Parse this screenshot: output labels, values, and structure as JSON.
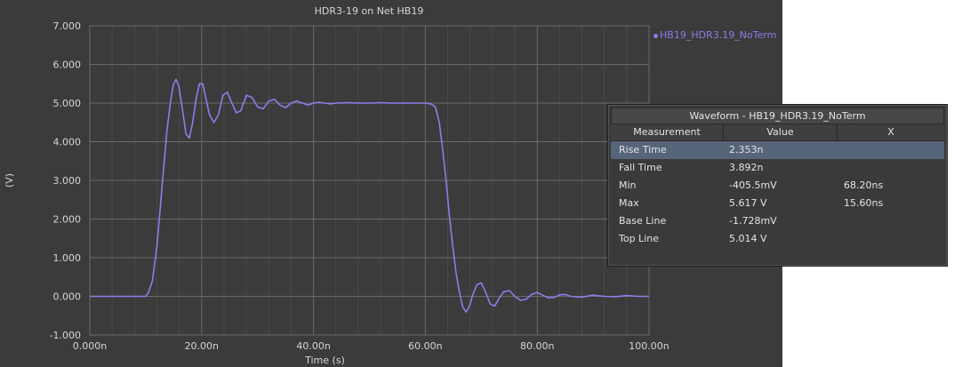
{
  "window": {
    "title": "HDR3-19 on Net HB19"
  },
  "chart_data": {
    "type": "line",
    "title": "HDR3-19 on Net HB19",
    "xlabel": "Time (s)",
    "ylabel": "(V)",
    "xlim": [
      0,
      100
    ],
    "ylim": [
      -1,
      7
    ],
    "x_tick_labels": [
      "0.000n",
      "20.00n",
      "40.00n",
      "60.00n",
      "80.00n",
      "100.00n"
    ],
    "x_ticks": [
      0,
      20,
      40,
      60,
      80,
      100
    ],
    "y_tick_labels": [
      "-1.000",
      "0.000",
      "1.000",
      "2.000",
      "3.000",
      "4.000",
      "5.000",
      "6.000",
      "7.000"
    ],
    "y_ticks": [
      -1,
      0,
      1,
      2,
      3,
      4,
      5,
      6,
      7
    ],
    "grid": true,
    "legend_position": "top-right",
    "series": [
      {
        "name": "HB19_HDR3.19_NoTerm",
        "color": "#8a7fe8",
        "x": [
          0,
          10,
          10.5,
          11.2,
          12,
          12.6,
          13.2,
          13.8,
          14.4,
          14.9,
          15.4,
          15.9,
          16.5,
          17.2,
          17.8,
          18.4,
          19.0,
          19.6,
          20.2,
          20.8,
          21.4,
          22.2,
          23.0,
          23.8,
          24.6,
          25.4,
          26.2,
          27.0,
          28.0,
          29.0,
          30.0,
          31.0,
          32.0,
          33.0,
          34.0,
          35.0,
          36.0,
          37.0,
          38.0,
          39.0,
          40.0,
          41.0,
          42.0,
          43.0,
          44.0,
          46.0,
          48.0,
          50.0,
          52.0,
          54.0,
          56.0,
          58.0,
          60.0,
          61.0,
          61.8,
          62.5,
          63.1,
          63.7,
          64.3,
          64.9,
          65.5,
          66.1,
          66.7,
          67.3,
          67.9,
          68.5,
          69.2,
          70.0,
          70.8,
          71.6,
          72.4,
          73.2,
          74.0,
          75.0,
          76.0,
          77.0,
          78.0,
          79.0,
          80.0,
          81.0,
          82.0,
          83.0,
          84.0,
          85.0,
          86.0,
          88.0,
          90.0,
          92.0,
          94.0,
          96.0,
          98.0,
          100.0
        ],
        "y": [
          0,
          0,
          0.1,
          0.4,
          1.3,
          2.3,
          3.3,
          4.3,
          5.0,
          5.45,
          5.617,
          5.45,
          4.9,
          4.2,
          4.1,
          4.5,
          5.1,
          5.5,
          5.5,
          5.1,
          4.7,
          4.5,
          4.7,
          5.2,
          5.28,
          5.0,
          4.75,
          4.8,
          5.2,
          5.15,
          4.9,
          4.85,
          5.05,
          5.1,
          4.95,
          4.88,
          5.0,
          5.05,
          5.0,
          4.95,
          5.0,
          5.02,
          5.0,
          4.98,
          5.0,
          5.01,
          5.0,
          5.0,
          5.01,
          5.0,
          5.0,
          5.0,
          5.0,
          4.98,
          4.9,
          4.5,
          3.8,
          3.0,
          2.1,
          1.3,
          0.6,
          0.1,
          -0.28,
          -0.4055,
          -0.25,
          0.05,
          0.3,
          0.35,
          0.1,
          -0.2,
          -0.25,
          -0.05,
          0.12,
          0.15,
          0.0,
          -0.1,
          -0.08,
          0.05,
          0.1,
          0.03,
          -0.04,
          -0.03,
          0.04,
          0.05,
          0.0,
          -0.02,
          0.03,
          0.0,
          -0.01,
          0.02,
          0.0,
          0.0
        ]
      }
    ]
  },
  "measurement_panel": {
    "title": "Waveform - HB19_HDR3.19_NoTerm",
    "columns": [
      "Measurement",
      "Value",
      "X"
    ],
    "rows": [
      {
        "name": "Rise Time",
        "value": "2.353n",
        "x": ""
      },
      {
        "name": "Fall Time",
        "value": "3.892n",
        "x": ""
      },
      {
        "name": "Min",
        "value": "-405.5mV",
        "x": "68.20ns"
      },
      {
        "name": "Max",
        "value": "5.617 V",
        "x": "15.60ns"
      },
      {
        "name": "Base Line",
        "value": "-1.728mV",
        "x": ""
      },
      {
        "name": "Top Line",
        "value": "5.014 V",
        "x": ""
      }
    ],
    "selected_row": 0
  }
}
